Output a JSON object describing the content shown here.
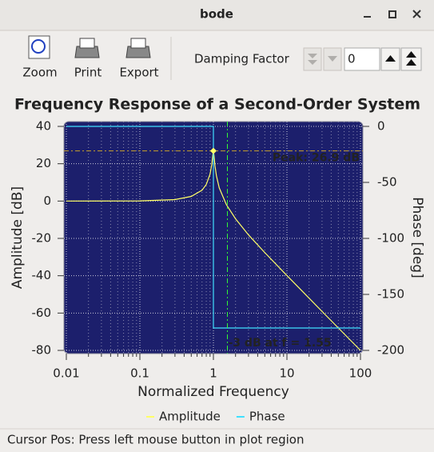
{
  "window": {
    "title": "bode"
  },
  "toolbar": {
    "buttons": [
      "Zoom",
      "Print",
      "Export"
    ],
    "damping_label": "Damping Factor",
    "damping_value": "0"
  },
  "chart_data": {
    "type": "line",
    "title": "Frequency Response of a Second-Order System",
    "x_label": "Normalized Frequency",
    "y_label": "Amplitude [dB]",
    "y2_label": "Phase [deg]",
    "xscale": "log",
    "xlim": [
      0.01,
      100
    ],
    "xticks": [
      0.01,
      0.1,
      1,
      10,
      100
    ],
    "ylim": [
      -80,
      40
    ],
    "yticks": [
      -80,
      -60,
      -40,
      -20,
      0,
      20,
      40
    ],
    "y2lim": [
      -200,
      0
    ],
    "y2ticks": [
      -200,
      -150,
      -100,
      -50,
      0
    ],
    "grid": true,
    "legend": "bottom",
    "series": [
      {
        "name": "Amplitude",
        "color": "#ffff66",
        "x": [
          0.01,
          0.1,
          0.3,
          0.5,
          0.7,
          0.8,
          0.9,
          0.95,
          0.98,
          1,
          1.02,
          1.05,
          1.1,
          1.2,
          1.5,
          2,
          3,
          5,
          10,
          30,
          100
        ],
        "values": [
          0,
          0.09,
          0.8,
          2.5,
          5.8,
          8.9,
          14.4,
          19.5,
          24.5,
          26.9,
          24.2,
          18.9,
          13.5,
          7.1,
          -1.9,
          -9.5,
          -18.1,
          -27.6,
          -39.9,
          -59.1,
          -80
        ]
      },
      {
        "name": "Phase",
        "color": "#40e0ff",
        "axis": "y2",
        "x": [
          0.01,
          1,
          1,
          100
        ],
        "values": [
          0,
          0,
          -180,
          -180
        ]
      }
    ],
    "annotations": [
      {
        "text": "Peak: 26.9 dB",
        "x": 1,
        "y": 26.9,
        "color": "#c8a02a"
      },
      {
        "text": "-3 dB at f = 1.55",
        "x": 1.55,
        "color": "#33ff33"
      }
    ]
  },
  "status": "Cursor Pos: Press left mouse button in plot region"
}
